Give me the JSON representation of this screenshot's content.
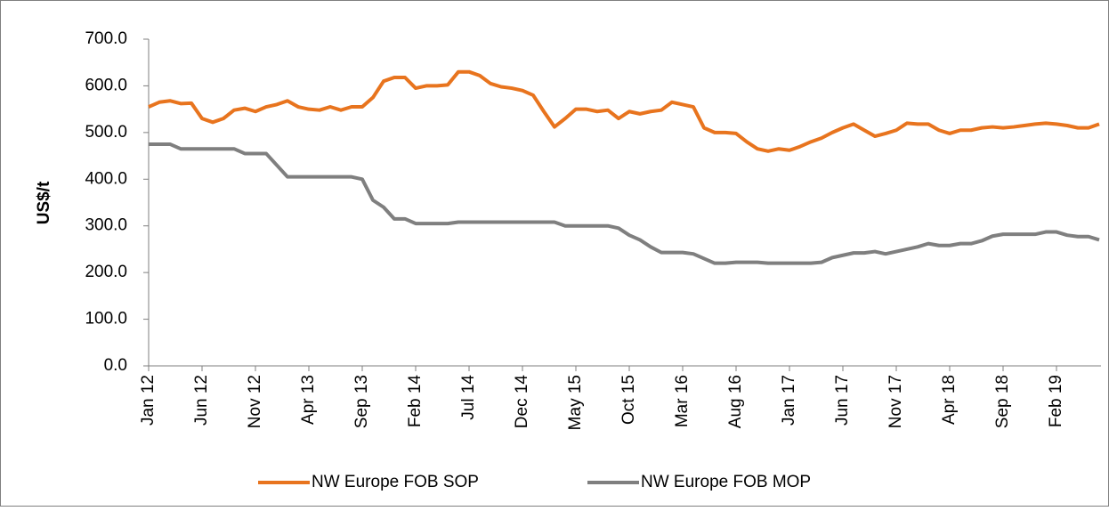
{
  "chart_data": {
    "type": "line",
    "y_label": "US$/t",
    "categories": [
      "Jan 12",
      null,
      null,
      null,
      null,
      "Jun 12",
      null,
      null,
      null,
      null,
      "Nov 12",
      null,
      null,
      null,
      null,
      "Apr 13",
      null,
      null,
      null,
      null,
      "Sep 13",
      null,
      null,
      null,
      null,
      "Feb 14",
      null,
      null,
      null,
      null,
      "Jul 14",
      null,
      null,
      null,
      null,
      "Dec 14",
      null,
      null,
      null,
      null,
      "May 15",
      null,
      null,
      null,
      null,
      "Oct 15",
      null,
      null,
      null,
      null,
      "Mar 16",
      null,
      null,
      null,
      null,
      "Aug 16",
      null,
      null,
      null,
      null,
      "Jan 17",
      null,
      null,
      null,
      null,
      "Jun 17",
      null,
      null,
      null,
      null,
      "Nov 17",
      null,
      null,
      null,
      null,
      "Apr 18",
      null,
      null,
      null,
      null,
      "Sep 18",
      null,
      null,
      null,
      null,
      "Feb 19",
      null,
      null,
      null,
      null
    ],
    "series": [
      {
        "name": "NW Europe FOB SOP",
        "color": "#e8741e",
        "values": [
          555,
          565,
          568,
          562,
          563,
          530,
          522,
          530,
          548,
          552,
          545,
          555,
          560,
          568,
          555,
          550,
          548,
          555,
          548,
          555,
          555,
          575,
          610,
          618,
          618,
          595,
          600,
          600,
          602,
          630,
          630,
          622,
          605,
          598,
          595,
          590,
          580,
          545,
          512,
          530,
          550,
          550,
          545,
          548,
          530,
          545,
          540,
          545,
          548,
          565,
          560,
          555,
          510,
          500,
          500,
          498,
          480,
          465,
          460,
          465,
          462,
          470,
          480,
          488,
          500,
          510,
          518,
          505,
          492,
          498,
          505,
          520,
          518,
          518,
          505,
          498,
          505,
          505,
          510,
          512,
          510,
          512,
          515,
          518,
          520,
          518,
          515,
          510,
          510,
          518
        ]
      },
      {
        "name": "NW Europe FOB MOP",
        "color": "#7f7f7f",
        "values": [
          475,
          475,
          475,
          465,
          465,
          465,
          465,
          465,
          465,
          455,
          455,
          455,
          430,
          405,
          405,
          405,
          405,
          405,
          405,
          405,
          400,
          355,
          340,
          315,
          315,
          305,
          305,
          305,
          305,
          308,
          308,
          308,
          308,
          308,
          308,
          308,
          308,
          308,
          308,
          300,
          300,
          300,
          300,
          300,
          295,
          280,
          270,
          255,
          243,
          243,
          243,
          240,
          230,
          220,
          220,
          222,
          222,
          222,
          220,
          220,
          220,
          220,
          220,
          222,
          232,
          237,
          242,
          242,
          245,
          240,
          245,
          250,
          255,
          262,
          258,
          258,
          262,
          262,
          268,
          278,
          282,
          282,
          282,
          282,
          287,
          287,
          280,
          277,
          277,
          270
        ]
      }
    ],
    "ylim": [
      0,
      700
    ],
    "yticks": [
      {
        "value": 0,
        "label": "0.0"
      },
      {
        "value": 100,
        "label": "100.0"
      },
      {
        "value": 200,
        "label": "200.0"
      },
      {
        "value": 300,
        "label": "300.0"
      },
      {
        "value": 400,
        "label": "400.0"
      },
      {
        "value": 500,
        "label": "500.0"
      },
      {
        "value": 600,
        "label": "600.0"
      },
      {
        "value": 700,
        "label": "700.0"
      }
    ],
    "grid": false,
    "legend": "bottom"
  }
}
